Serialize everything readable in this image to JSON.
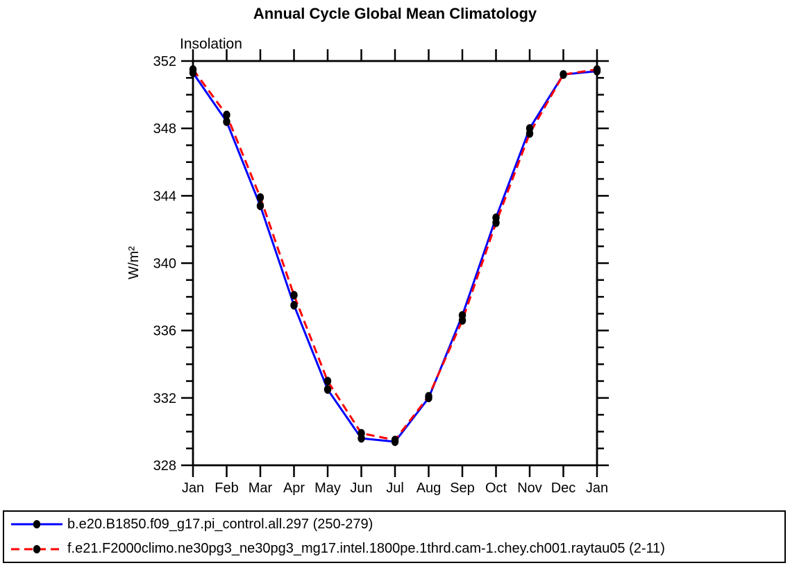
{
  "chart": {
    "background_color": "#ffffff",
    "axis_color": "#000000",
    "marker_color": "#000000"
  },
  "chart_data": {
    "type": "line",
    "title": "Annual Cycle Global Mean Climatology",
    "subtitle": "Insolation",
    "ylabel": "W/m²",
    "xlabel": "",
    "categories": [
      "Jan",
      "Feb",
      "Mar",
      "Apr",
      "May",
      "Jun",
      "Jul",
      "Aug",
      "Sep",
      "Oct",
      "Nov",
      "Dec",
      "Jan"
    ],
    "series": [
      {
        "name": "b.e20.B1850.f09_g17.pi_control.all.297 (250-279)",
        "color": "#0000ff",
        "style": "solid",
        "marker": "filled-circle",
        "marker_color": "#000000",
        "values": [
          351.3,
          348.4,
          343.4,
          337.5,
          332.5,
          329.6,
          329.4,
          332.0,
          336.9,
          342.7,
          348.0,
          351.2,
          351.4
        ]
      },
      {
        "name": "f.e21.F2000climo.ne30pg3_ne30pg3_mg17.intel.1800pe.1thrd.cam-1.chey.ch001.raytau05 (2-11)",
        "color": "#ff0000",
        "style": "dashed",
        "marker": "filled-circle",
        "marker_color": "#000000",
        "values": [
          351.5,
          348.8,
          343.9,
          338.1,
          333.0,
          329.9,
          329.5,
          332.1,
          336.6,
          342.4,
          347.7,
          351.2,
          351.5
        ]
      }
    ],
    "ylim": [
      328,
      352
    ],
    "yticks": [
      328,
      332,
      336,
      340,
      344,
      348,
      352
    ],
    "ytick_minor_step": 1,
    "grid": false,
    "axis_box": true,
    "ticks_direction": "outward",
    "legend_position": "bottom"
  }
}
